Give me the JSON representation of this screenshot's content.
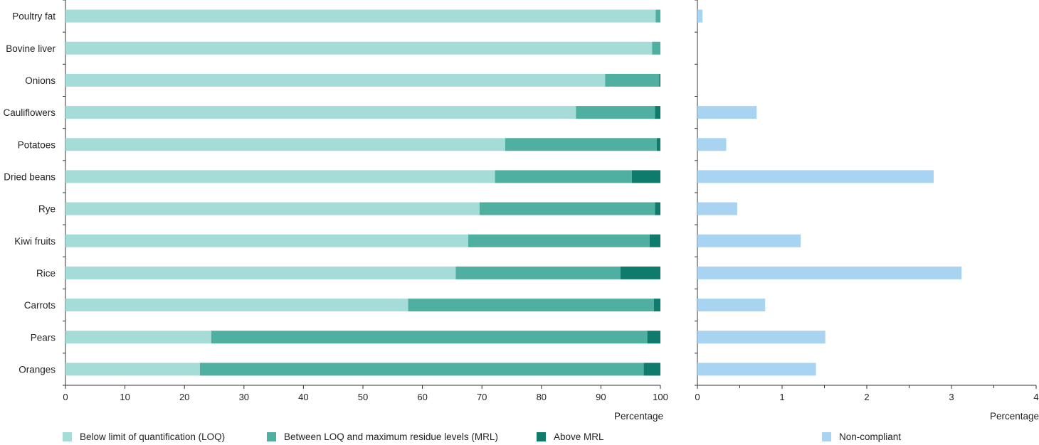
{
  "chart_data": [
    {
      "type": "bar",
      "orientation": "horizontal",
      "stacked": true,
      "categories": [
        "Poultry fat",
        "Bovine liver",
        "Onions",
        "Cauliflowers",
        "Potatoes",
        "Dried beans",
        "Rye",
        "Kiwi fruits",
        "Rice",
        "Carrots",
        "Pears",
        "Oranges"
      ],
      "series": [
        {
          "name": "Below limit of quantification (LOQ)",
          "color": "#a5dcd7",
          "values": [
            99.2,
            98.6,
            90.7,
            85.8,
            73.9,
            72.2,
            69.6,
            67.7,
            65.6,
            57.6,
            24.5,
            22.6
          ]
        },
        {
          "name": "Between LOQ and maximum residue levels (MRL)",
          "color": "#4fb0a2",
          "values": [
            0.8,
            1.4,
            9.1,
            13.3,
            25.5,
            23.0,
            29.5,
            30.5,
            27.7,
            41.3,
            73.3,
            74.6
          ]
        },
        {
          "name": "Above MRL",
          "color": "#0f7b6c",
          "values": [
            0.0,
            0.0,
            0.2,
            0.9,
            0.6,
            4.8,
            0.9,
            1.8,
            6.7,
            1.1,
            2.2,
            2.8
          ]
        }
      ],
      "xlabel": "Percentage",
      "xlim": [
        0,
        100
      ],
      "xticks": [
        0,
        10,
        20,
        30,
        40,
        50,
        60,
        70,
        80,
        90,
        100
      ],
      "grid": false,
      "legend_position": "bottom"
    },
    {
      "type": "bar",
      "orientation": "horizontal",
      "categories": [
        "Poultry fat",
        "Bovine liver",
        "Onions",
        "Cauliflowers",
        "Potatoes",
        "Dried beans",
        "Rye",
        "Kiwi fruits",
        "Rice",
        "Carrots",
        "Pears",
        "Oranges"
      ],
      "series": [
        {
          "name": "Non-compliant",
          "color": "#a8d4f2",
          "values": [
            0.06,
            0,
            0,
            0.7,
            0.34,
            2.79,
            0.47,
            1.22,
            3.12,
            0.8,
            1.51,
            1.4
          ]
        }
      ],
      "xlabel": "Percentage",
      "xlim": [
        0,
        4
      ],
      "xticks": [
        0,
        1,
        2,
        3,
        4
      ],
      "grid": false,
      "legend_position": "bottom"
    }
  ]
}
